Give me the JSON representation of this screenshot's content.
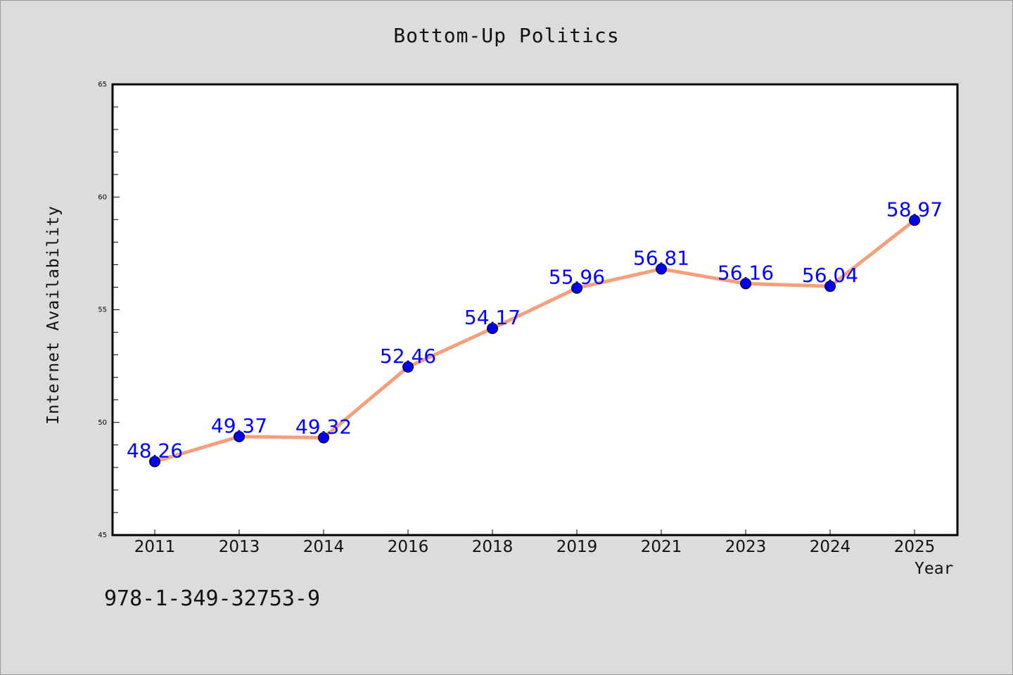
{
  "chart_data": {
    "type": "line",
    "title": "Bottom-Up Politics",
    "xlabel": "Year",
    "ylabel": "Internet Availability",
    "categories": [
      "2011",
      "2013",
      "2014",
      "2016",
      "2018",
      "2019",
      "2021",
      "2023",
      "2024",
      "2025"
    ],
    "series": [
      {
        "values": [
          48.26,
          49.37,
          49.32,
          52.46,
          54.17,
          55.96,
          56.81,
          56.16,
          56.04,
          58.97
        ],
        "data_labels": [
          "48.26",
          "49.37",
          "49.32",
          "52.46",
          "54.17",
          "55.96",
          "56.81",
          "56.16",
          "56.04",
          "58.97"
        ]
      }
    ],
    "ylim": [
      45,
      65
    ],
    "yticks": [
      "45",
      "50",
      "55",
      "60",
      "65"
    ],
    "grid": false,
    "legend": "none",
    "colors": {
      "line": "#f4a07e",
      "marker": "#0000ee",
      "data_label": "#0000ff",
      "background": "#dcdcdc",
      "plot_area": "#ffffff"
    }
  },
  "footer": {
    "isbn": "978-1-349-32753-9"
  }
}
